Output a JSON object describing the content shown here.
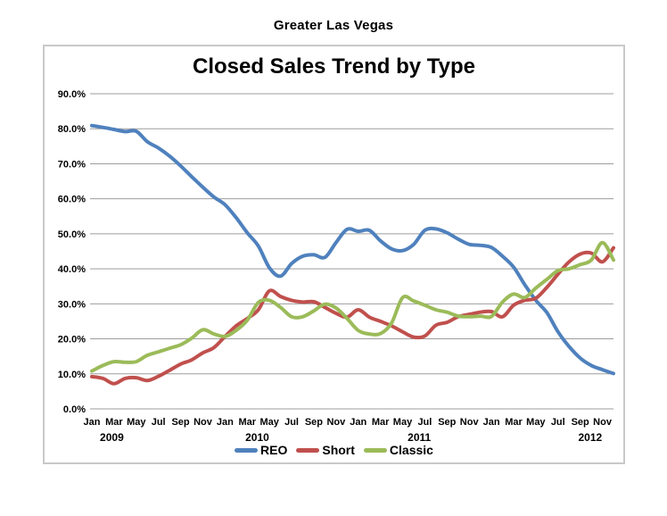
{
  "page": {
    "title": "Greater Las Vegas"
  },
  "chart_data": {
    "type": "line",
    "title": "Closed Sales Trend by Type",
    "x_unit": "month",
    "x_start": "Jan 2009",
    "x_end": "Dec 2012",
    "n_points": 48,
    "x_tick_labels": [
      "Jan",
      "Mar",
      "May",
      "Jul",
      "Sep",
      "Nov"
    ],
    "year_labels": [
      "2009",
      "2010",
      "2011",
      "2012"
    ],
    "y_tick_labels": [
      "0.0%",
      "10.0%",
      "20.0%",
      "30.0%",
      "40.0%",
      "50.0%",
      "60.0%",
      "70.0%",
      "80.0%",
      "90.0%"
    ],
    "ylim": [
      0,
      90
    ],
    "ytick_step": 10,
    "grid": true,
    "smooth_lines": true,
    "legend_position": "bottom",
    "grid_color": "#9d9d9d",
    "frame_border_color": "#c9c9c9",
    "series": [
      {
        "name": "REO",
        "color": "#4F81BD",
        "values": [
          80.9,
          80.4,
          79.8,
          79.2,
          79.3,
          76.3,
          74.5,
          72.2,
          69.4,
          66.3,
          63.3,
          60.5,
          58.3,
          54.6,
          50.3,
          46.5,
          40.3,
          37.9,
          41.5,
          43.6,
          44.0,
          43.3,
          47.5,
          51.3,
          50.7,
          51.0,
          48.0,
          45.7,
          45.2,
          47.0,
          51.0,
          51.4,
          50.3,
          48.5,
          47.0,
          46.7,
          46.1,
          43.6,
          40.5,
          35.5,
          31.0,
          27.5,
          22.0,
          17.8,
          14.5,
          12.4,
          11.2,
          10.1
        ]
      },
      {
        "name": "Short",
        "color": "#C0504D",
        "values": [
          9.2,
          8.7,
          7.2,
          8.7,
          8.9,
          8.1,
          9.3,
          11.0,
          12.8,
          14.0,
          16.0,
          17.5,
          20.7,
          23.7,
          25.8,
          28.3,
          33.7,
          32.1,
          31.0,
          30.5,
          30.6,
          29.0,
          27.3,
          26.2,
          28.3,
          26.2,
          25.0,
          23.7,
          22.0,
          20.5,
          20.8,
          23.9,
          24.7,
          26.3,
          27.0,
          27.6,
          27.8,
          26.3,
          29.6,
          31.0,
          31.6,
          34.7,
          38.5,
          42.0,
          44.2,
          44.5,
          42.0,
          46.0
        ]
      },
      {
        "name": "Classic",
        "color": "#9BBB59",
        "values": [
          10.8,
          12.4,
          13.5,
          13.3,
          13.5,
          15.3,
          16.3,
          17.3,
          18.3,
          20.2,
          22.6,
          21.4,
          20.7,
          22.4,
          25.3,
          30.4,
          31.0,
          29.0,
          26.3,
          26.3,
          28.0,
          29.9,
          28.8,
          25.8,
          22.4,
          21.4,
          21.5,
          24.5,
          31.8,
          30.8,
          29.6,
          28.3,
          27.6,
          26.5,
          26.3,
          26.5,
          26.4,
          30.5,
          32.8,
          31.8,
          34.5,
          37.0,
          39.5,
          40.0,
          41.2,
          42.5,
          47.5,
          42.5
        ]
      }
    ]
  }
}
